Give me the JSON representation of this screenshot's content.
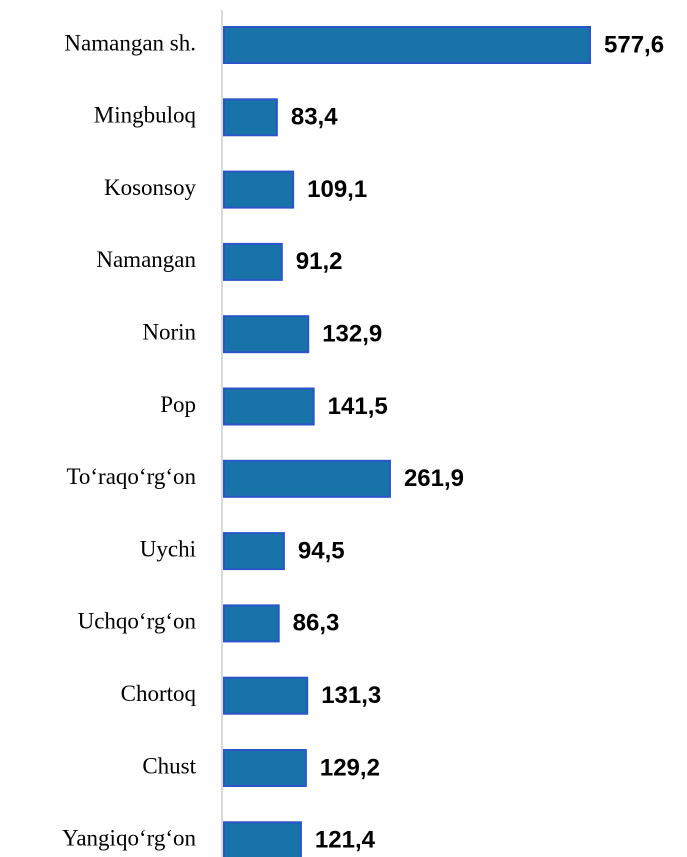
{
  "chart_data": {
    "type": "bar",
    "orientation": "horizontal",
    "categories": [
      "Namangan sh.",
      "Mingbuloq",
      "Kosonsoy",
      "Namangan",
      "Norin",
      "Pop",
      "To‘raqo‘rg‘on",
      "Uychi",
      "Uchqo‘rg‘on",
      "Chortoq",
      "Chust",
      "Yangiqo‘rg‘on"
    ],
    "values": [
      577.6,
      83.4,
      109.1,
      91.2,
      132.9,
      141.5,
      261.9,
      94.5,
      86.3,
      131.3,
      129.2,
      121.4
    ],
    "value_labels": [
      "577,6",
      "83,4",
      "109,1",
      "91,2",
      "132,9",
      "141,5",
      "261,9",
      "94,5",
      "86,3",
      "131,3",
      "129,2",
      "121,4"
    ],
    "color": "#1873a8"
  }
}
